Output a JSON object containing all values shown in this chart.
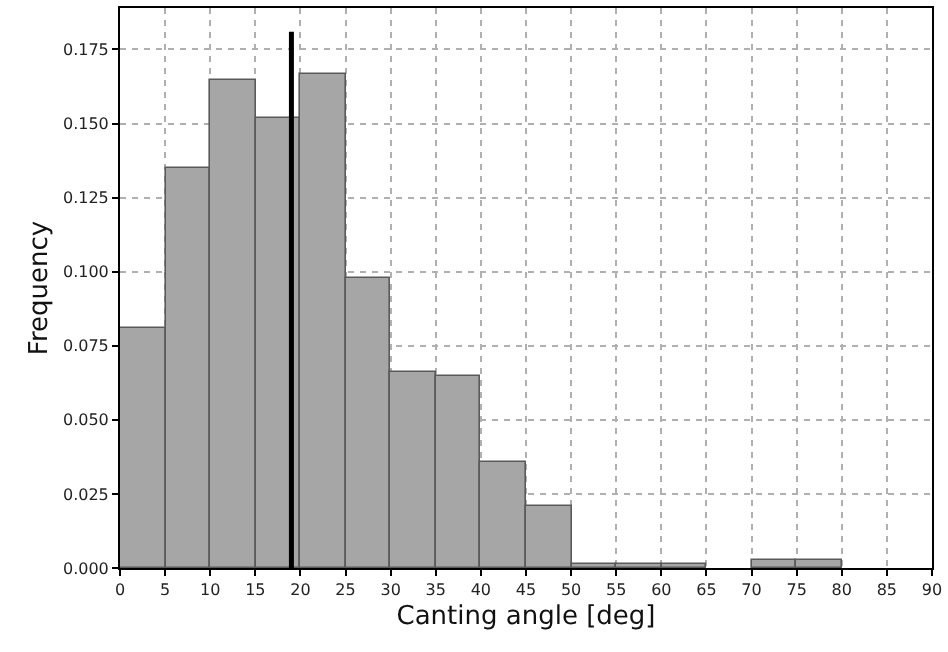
{
  "chart_data": {
    "type": "histogram",
    "xlabel": "Canting angle [deg]",
    "ylabel": "Frequency",
    "bins": [
      0,
      5,
      10,
      15,
      20,
      25,
      30,
      35,
      40,
      45,
      50,
      55,
      60,
      65,
      70,
      75,
      80,
      85,
      90
    ],
    "color": "#a6a6a6",
    "values": [
      0.081,
      0.135,
      0.165,
      0.152,
      0.167,
      0.098,
      0.066,
      0.065,
      0.036,
      0.021,
      0.0015,
      0.0015,
      0.0015,
      0,
      0.003,
      0.003,
      0,
      0
    ],
    "series": [
      {
        "type": "line",
        "color": "#000000",
        "x": [
          19,
          19
        ],
        "values": [
          0,
          0.181
        ]
      }
    ],
    "xlim": [
      0,
      90
    ],
    "xticks": [
      0,
      5,
      10,
      15,
      20,
      25,
      30,
      35,
      40,
      45,
      50,
      55,
      60,
      65,
      70,
      75,
      80,
      85,
      90
    ],
    "ylim": [
      0,
      0.189
    ],
    "yticks": [
      {
        "value": 0,
        "label": "0.000"
      },
      {
        "value": 0.025,
        "label": "0.025"
      },
      {
        "value": 0.05,
        "label": "0.050"
      },
      {
        "value": 0.075,
        "label": "0.075"
      },
      {
        "value": 0.1,
        "label": "0.100"
      },
      {
        "value": 0.125,
        "label": "0.125"
      },
      {
        "value": 0.15,
        "label": "0.150"
      },
      {
        "value": 0.175,
        "label": "0.175"
      }
    ],
    "grid": true
  }
}
